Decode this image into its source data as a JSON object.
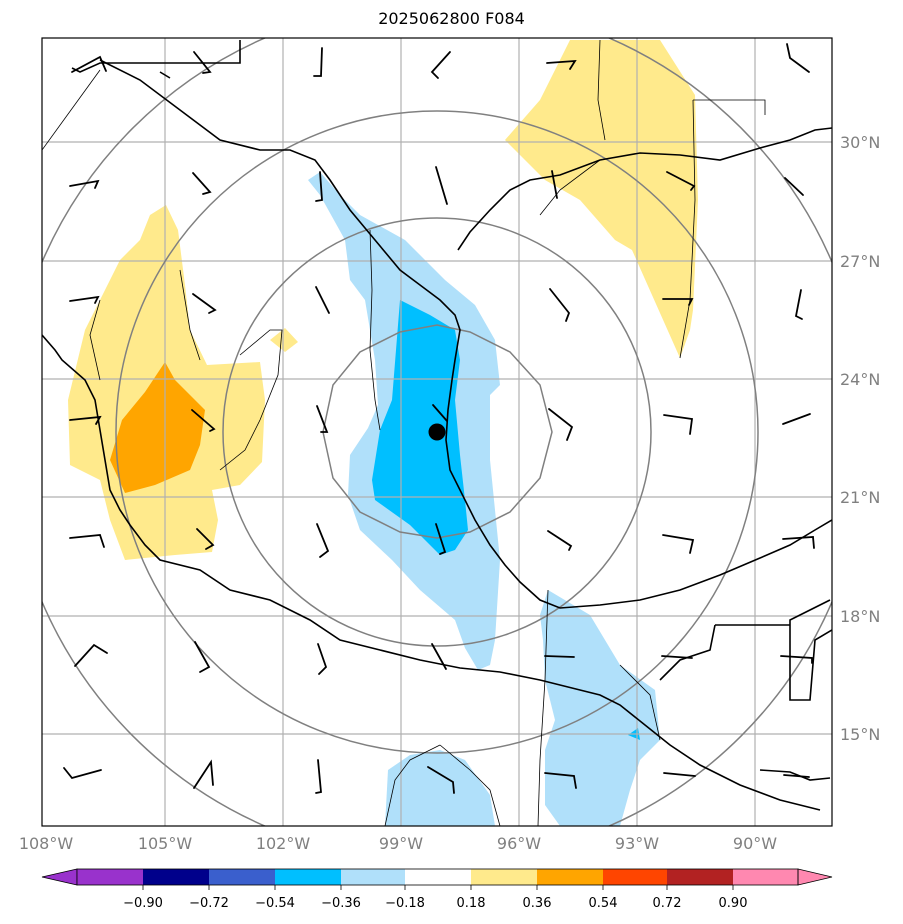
{
  "title": "2025062800 F084",
  "map": {
    "lon_labels": [
      "108°W",
      "105°W",
      "102°W",
      "99°W",
      "96°W",
      "93°W",
      "90°W"
    ],
    "lat_labels": [
      "30°N",
      "27°N",
      "24°N",
      "21°N",
      "18°N",
      "15°N"
    ],
    "center_marker": {
      "lon": -98.1,
      "lat": 22.7
    }
  },
  "colorbar": {
    "labels": [
      "−0.90",
      "−0.72",
      "−0.54",
      "−0.36",
      "−0.18",
      "0.18",
      "0.36",
      "0.54",
      "0.72",
      "0.90"
    ],
    "colors": [
      "#9932cc",
      "#00008b",
      "#3a5fcd",
      "#00bfff",
      "#b0e0fa",
      "#ffffff",
      "#ffea8c",
      "#ffa500",
      "#ff4500",
      "#b22222",
      "#ff88b0"
    ]
  },
  "field_colors": {
    "light_blue": "#b0e0fa",
    "blue": "#00bfff",
    "light_yellow": "#ffea8c",
    "orange": "#ffa500"
  }
}
